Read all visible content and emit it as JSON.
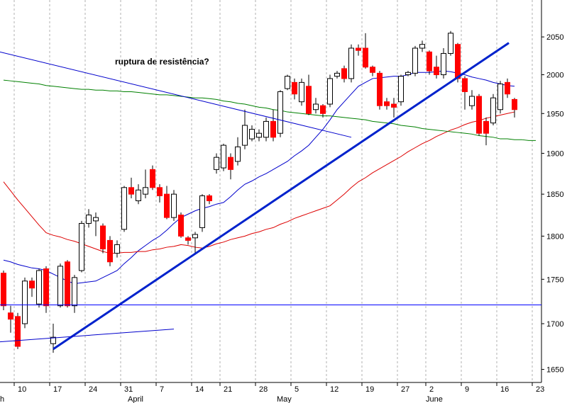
{
  "chart_data": {
    "type": "candlestick",
    "annotation": "ruptura de resistência?",
    "log_scale": true,
    "ylim": [
      1636,
      2100
    ],
    "yticks": [
      1650,
      1700,
      1750,
      1800,
      1850,
      1900,
      1950,
      2000,
      2050
    ],
    "grid": true,
    "categories": [
      null,
      null,
      "10",
      null,
      null,
      null,
      null,
      "17",
      null,
      null,
      null,
      null,
      "24",
      null,
      null,
      null,
      null,
      "31",
      null,
      null,
      null,
      null,
      "7",
      null,
      null,
      null,
      null,
      "14",
      null,
      null,
      null,
      "21",
      null,
      null,
      null,
      null,
      "28",
      null,
      null,
      null,
      null,
      "5",
      null,
      null,
      null,
      null,
      "12",
      null,
      null,
      null,
      null,
      "19",
      null,
      null,
      null,
      null,
      "27",
      null,
      null,
      null,
      "2",
      null,
      null,
      null,
      null,
      "9",
      null,
      null,
      null,
      null,
      "16",
      null,
      null,
      null,
      null,
      "23"
    ],
    "months": [
      "h",
      null,
      null,
      null,
      null,
      null,
      null,
      null,
      null,
      null,
      null,
      null,
      null,
      null,
      null,
      null,
      null,
      null,
      "April",
      null,
      null,
      null,
      null,
      null,
      null,
      null,
      null,
      null,
      null,
      null,
      null,
      null,
      null,
      null,
      null,
      null,
      null,
      null,
      null,
      "May",
      null,
      null,
      null,
      null,
      null,
      null,
      null,
      null,
      null,
      null,
      null,
      null,
      null,
      null,
      null,
      null,
      null,
      null,
      null,
      null,
      "June",
      null,
      null,
      null,
      null,
      null,
      null,
      null,
      null,
      null,
      null,
      null,
      null,
      null,
      null,
      null
    ],
    "up_color": "#ffffff",
    "down_color": "#ff0000",
    "open": [
      1757,
      1712,
      1708,
      1700,
      1748,
      1722,
      1762,
      1678,
      1720,
      1770,
      1720,
      1760,
      1815,
      1818,
      1812,
      1795,
      1780,
      1808,
      1858,
      1842,
      1850,
      1880,
      1858,
      1850,
      1822,
      1825,
      1798,
      1798,
      1810,
      1848,
      1880,
      1882,
      1895,
      1890,
      1910,
      1918,
      1920,
      1920,
      1940,
      1925,
      1982,
      1990,
      1965,
      1985,
      1955,
      1960,
      1962,
      1998,
      2008,
      1995,
      2035,
      2035,
      2010,
      2002,
      1965,
      1962,
      1965,
      2000,
      2002,
      2035,
      2030,
      2010,
      2000,
      2028,
      2040,
      1995,
      1960,
      1972,
      1940,
      1938,
      1955,
      1990,
      1968,
      null,
      null,
      null
    ],
    "high": [
      1760,
      1720,
      1712,
      1752,
      1752,
      1762,
      1765,
      1700,
      1768,
      1772,
      1755,
      1818,
      1832,
      1828,
      1815,
      1800,
      1795,
      1860,
      1870,
      1862,
      1880,
      1885,
      1862,
      1860,
      1855,
      1828,
      1800,
      1805,
      1850,
      1850,
      1900,
      1912,
      1900,
      1920,
      1955,
      1935,
      1930,
      1945,
      1955,
      1980,
      2000,
      1995,
      1995,
      2000,
      1970,
      1962,
      2000,
      2005,
      2012,
      2040,
      2040,
      2055,
      2012,
      2005,
      1970,
      1970,
      2000,
      2005,
      2038,
      2045,
      2032,
      2025,
      2035,
      2058,
      2042,
      1998,
      1980,
      1975,
      1945,
      1975,
      1992,
      1995,
      1970,
      null,
      null,
      null
    ],
    "low": [
      1715,
      1690,
      1672,
      1695,
      1730,
      1718,
      1712,
      1668,
      1718,
      1718,
      1712,
      1758,
      1810,
      1800,
      1780,
      1765,
      1775,
      1805,
      1845,
      1838,
      1845,
      1855,
      1840,
      1820,
      1818,
      1798,
      1790,
      1780,
      1805,
      1838,
      1875,
      1878,
      1868,
      1885,
      1905,
      1915,
      1915,
      1915,
      1915,
      1920,
      1980,
      1968,
      1960,
      1948,
      1950,
      1945,
      1958,
      1995,
      1990,
      1990,
      2025,
      2008,
      1998,
      1955,
      1955,
      1945,
      1960,
      1998,
      1998,
      2030,
      2000,
      1995,
      1995,
      2025,
      1990,
      1955,
      1955,
      1922,
      1910,
      1935,
      1950,
      1970,
      1945,
      null,
      null,
      null
    ],
    "close": [
      1720,
      1705,
      1675,
      1748,
      1740,
      1760,
      1720,
      1685,
      1765,
      1720,
      1752,
      1815,
      1825,
      1822,
      1785,
      1770,
      1790,
      1858,
      1850,
      1855,
      1858,
      1858,
      1848,
      1822,
      1850,
      1800,
      1795,
      1802,
      1848,
      1842,
      1895,
      1910,
      1880,
      1908,
      1935,
      1930,
      1925,
      1940,
      1920,
      1978,
      1998,
      1975,
      1990,
      1950,
      1962,
      1950,
      1995,
      2002,
      1995,
      2035,
      2032,
      2010,
      2003,
      1960,
      1960,
      1958,
      1998,
      2003,
      2035,
      2040,
      2005,
      2000,
      2028,
      2055,
      1995,
      1978,
      1972,
      1925,
      1925,
      1970,
      1988,
      1975,
      1955,
      null,
      null,
      null
    ],
    "series": [
      {
        "color": "#0000cc",
        "values": [
          1772,
          1770,
          1767,
          1765,
          1763,
          1762,
          1760,
          1756,
          1752,
          1748,
          1745,
          1746,
          1747,
          1748,
          1752,
          1756,
          1760,
          1768,
          1775,
          1783,
          1789,
          1795,
          1800,
          1807,
          1815,
          1822,
          1826,
          1830,
          1833,
          1835,
          1838,
          1840,
          1847,
          1855,
          1862,
          1866,
          1871,
          1875,
          1880,
          1885,
          1890,
          1897,
          1903,
          1910,
          1920,
          1930,
          1942,
          1955,
          1965,
          1975,
          1985,
          1990,
          1995,
          1996,
          1997,
          1998,
          1998,
          2000,
          2003,
          2003,
          2003,
          2004,
          2005,
          2004,
          2002,
          2000,
          1997,
          1995,
          1993,
          1990,
          1988,
          1986,
          1985,
          null,
          null,
          null
        ]
      },
      {
        "color": "#dd0000",
        "values": [
          1865,
          1854,
          1843,
          1833,
          1823,
          1813,
          1804,
          1801,
          1799,
          1796,
          1794,
          1791,
          1788,
          1785,
          1782,
          1780,
          1780,
          1781,
          1781,
          1782,
          1782,
          1784,
          1785,
          1787,
          1788,
          1790,
          1789,
          1787,
          1786,
          1788,
          1791,
          1793,
          1796,
          1798,
          1800,
          1803,
          1805,
          1808,
          1810,
          1814,
          1817,
          1821,
          1824,
          1827,
          1830,
          1833,
          1836,
          1843,
          1850,
          1858,
          1865,
          1870,
          1876,
          1881,
          1886,
          1891,
          1896,
          1902,
          1907,
          1912,
          1916,
          1921,
          1925,
          1929,
          1932,
          1936,
          1939,
          1941,
          1944,
          1946,
          1948,
          1950,
          1952,
          null,
          null,
          null
        ]
      },
      {
        "color": "#008000",
        "values": [
          1993,
          1992,
          1991,
          1990,
          1989,
          1988,
          1986,
          1985,
          1984,
          1983,
          1982,
          1981,
          1981,
          1980,
          1980,
          1979,
          1979,
          1978,
          1978,
          1977,
          1976,
          1975,
          1974,
          1974,
          1973,
          1972,
          1971,
          1970,
          1970,
          1969,
          1968,
          1966,
          1965,
          1963,
          1962,
          1960,
          1958,
          1957,
          1955,
          1954,
          1952,
          1951,
          1950,
          1949,
          1948,
          1947,
          1947,
          1946,
          1945,
          1944,
          1943,
          1942,
          1940,
          1939,
          1938,
          1937,
          1935,
          1934,
          1933,
          1931,
          1930,
          1929,
          1928,
          1927,
          1926,
          1925,
          1924,
          1922,
          1921,
          1920,
          1918,
          1918,
          1917,
          1917,
          1916,
          1916
        ]
      }
    ],
    "trendlines": [
      {
        "color": "#0000cc",
        "width": 1,
        "x": [
          -0.5,
          49
        ],
        "y": [
          2030,
          1920
        ]
      },
      {
        "color": "#0022cc",
        "width": 3,
        "x": [
          7,
          71.2
        ],
        "y": [
          1672,
          2042
        ]
      },
      {
        "color": "#0000cc",
        "width": 1,
        "x": [
          -0.5,
          24
        ],
        "y": [
          1680,
          1694
        ]
      },
      {
        "color": "#0000ff",
        "width": 1,
        "x": [
          -0.5,
          75.8
        ],
        "y": [
          1721,
          1721
        ]
      }
    ]
  }
}
